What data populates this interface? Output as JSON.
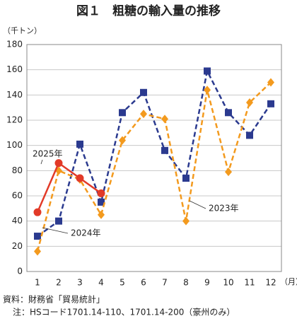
{
  "chart_data": {
    "type": "line",
    "title": "図１　粗糖の輸入量の推移",
    "y_unit": "（千トン）",
    "x_unit": "（月）",
    "source": "資料：財務省「貿易統計」",
    "note": "注：HSコード1701.14-110、1701.14-200（豪州のみ）",
    "categories": [
      "1",
      "2",
      "3",
      "4",
      "5",
      "6",
      "7",
      "8",
      "9",
      "10",
      "11",
      "12"
    ],
    "ylim": [
      0,
      180
    ],
    "yticks": [
      0,
      20,
      40,
      60,
      80,
      100,
      120,
      140,
      160,
      180
    ],
    "grid": true,
    "series": [
      {
        "name": "2024年",
        "color": "#2b3a8f",
        "dash": true,
        "marker": "square",
        "values": [
          28,
          40,
          101,
          55,
          126,
          142,
          96,
          74,
          159,
          126,
          108,
          133
        ]
      },
      {
        "name": "2023年",
        "color": "#f39a1e",
        "dash": true,
        "marker": "diamond",
        "values": [
          16,
          80,
          73,
          45,
          104,
          125,
          121,
          40,
          144,
          79,
          134,
          150
        ]
      },
      {
        "name": "2025年",
        "color": "#e23a28",
        "dash": false,
        "marker": "circle",
        "values": [
          47,
          86,
          74,
          62,
          null,
          null,
          null,
          null,
          null,
          null,
          null,
          null
        ]
      }
    ]
  }
}
